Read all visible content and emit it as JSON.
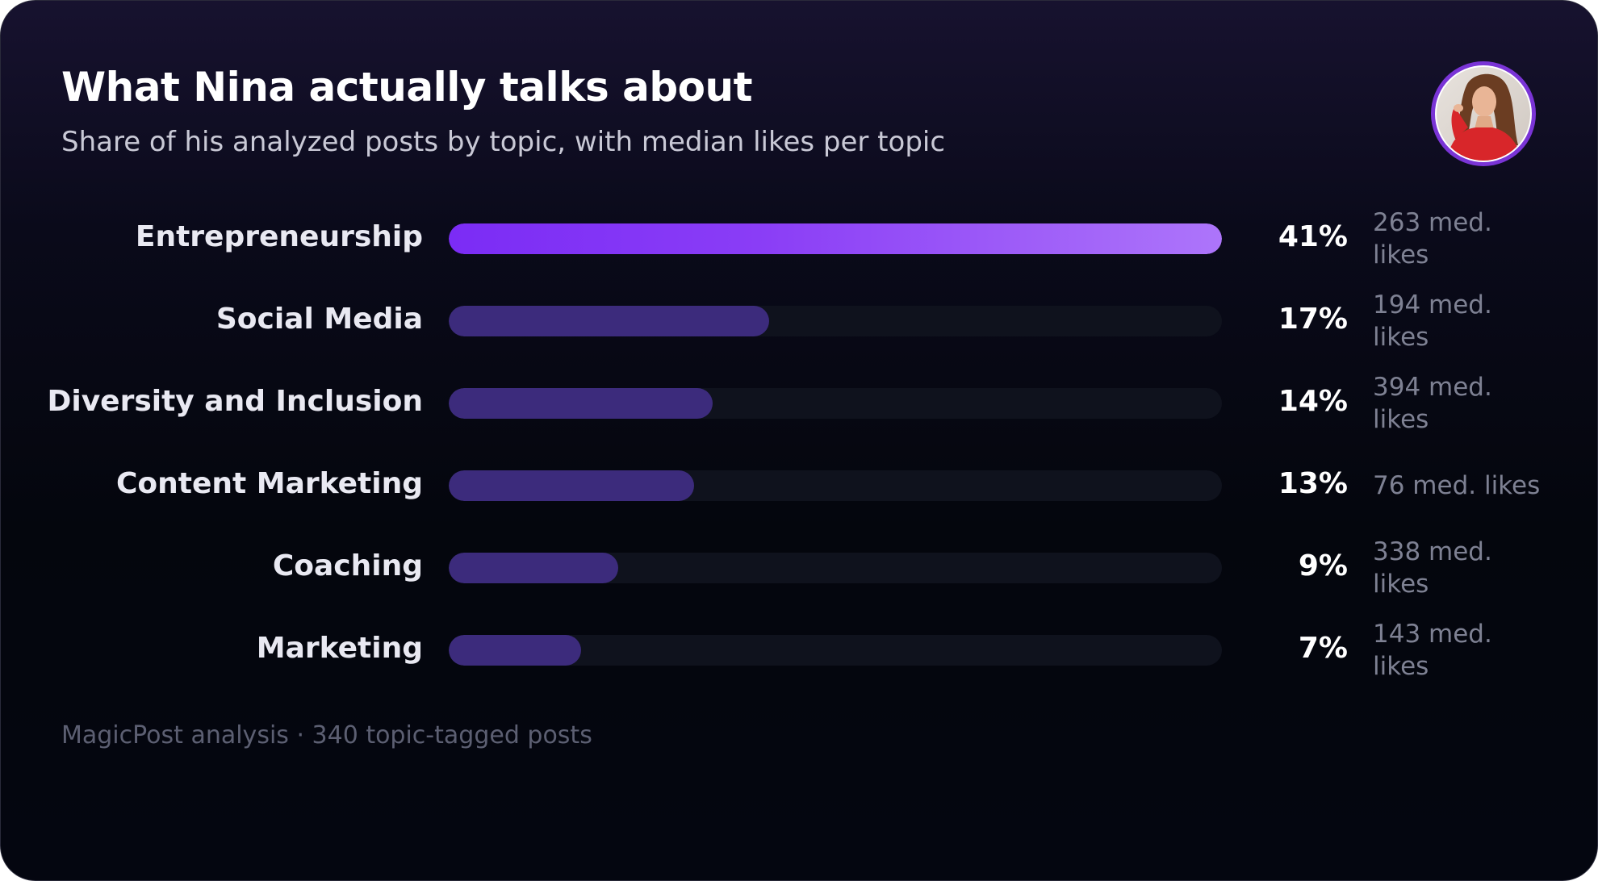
{
  "header": {
    "title": "What Nina actually talks about",
    "subtitle": "Share of his analyzed posts by topic, with median likes per topic"
  },
  "footer": {
    "text": "MagicPost analysis · 340 topic-tagged posts"
  },
  "colors": {
    "accent_start": "#7b2cf5",
    "accent_end": "#ad75fa",
    "bar_fill": "#3c2b7c",
    "bar_track": "#0f121d",
    "avatar_ring": "#7a34d6"
  },
  "chart_data": {
    "type": "bar",
    "orientation": "horizontal",
    "title": "What Nina actually talks about",
    "subtitle": "Share of his analyzed posts by topic, with median likes per topic",
    "categories": [
      "Entrepreneurship",
      "Social Media",
      "Diversity and Inclusion",
      "Content Marketing",
      "Coaching",
      "Marketing"
    ],
    "values": [
      41,
      17,
      14,
      13,
      9,
      7
    ],
    "value_labels": [
      "41%",
      "17%",
      "14%",
      "13%",
      "9%",
      "7%"
    ],
    "median_likes": [
      263,
      194,
      394,
      76,
      338,
      143
    ],
    "median_likes_labels": [
      "263 med. likes",
      "194 med. likes",
      "394 med. likes",
      "76 med. likes",
      "338 med. likes",
      "143 med. likes"
    ],
    "xlim": [
      0,
      41
    ],
    "grid": false,
    "legend": "none"
  }
}
